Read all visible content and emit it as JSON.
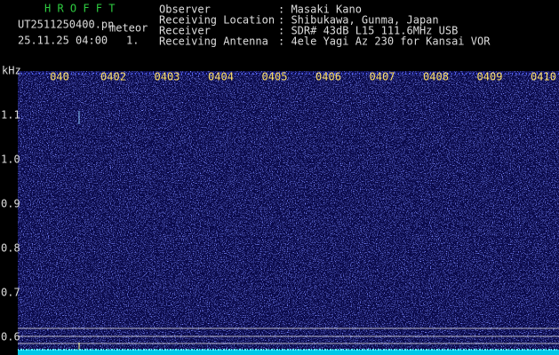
{
  "header": {
    "app": "H R O F F T",
    "file": "UT2511250400.pn",
    "tag": "meteor",
    "datetime": "25.11.25 04:00",
    "frame": "1."
  },
  "info": [
    {
      "label": "Observer",
      "value": ": Masaki Kano"
    },
    {
      "label": "Receiving Location",
      "value": ": Shibukawa, Gunma, Japan"
    },
    {
      "label": "Receiver",
      "value": ": SDR# 43dB L15 111.6MHz USB"
    },
    {
      "label": "Receiving Antenna",
      "value": ": 4ele Yagi Az 230 for Kansai VOR"
    }
  ],
  "axis": {
    "unit": "kHz",
    "y_labels": [
      "1.1",
      "1.0",
      "0.9",
      "0.8",
      "0.7",
      "0.6"
    ],
    "x_labels": [
      "040",
      "0402",
      "0403",
      "0404",
      "0405",
      "0406",
      "0407",
      "0408",
      "0409",
      "0410"
    ]
  }
}
